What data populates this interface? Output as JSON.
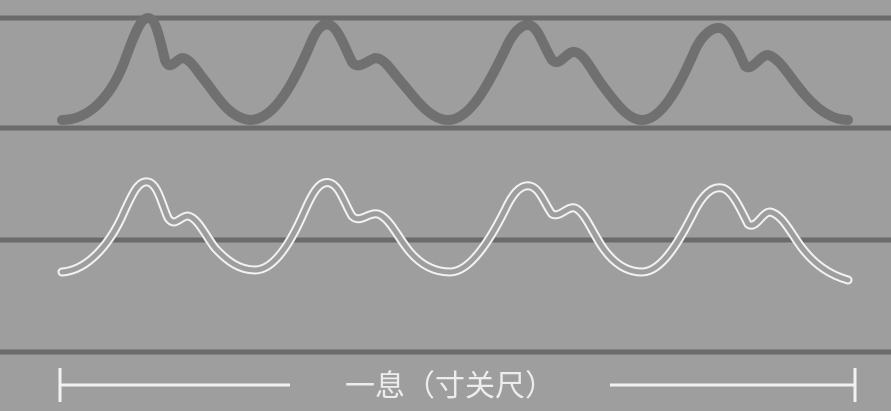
{
  "caption": "一息（寸关尺）",
  "colors": {
    "background": "#9e9e9e",
    "baseline": "#6b6b6b",
    "solid_waveform": "#707070",
    "outline_waveform_stroke": "#f2f2f2",
    "outline_waveform_fill": "#6f6f6f",
    "scale_bar": "#f2f2f2"
  },
  "waveforms": [
    {
      "style": "solid",
      "beats": 4
    },
    {
      "style": "double-outline",
      "beats": 4
    }
  ]
}
